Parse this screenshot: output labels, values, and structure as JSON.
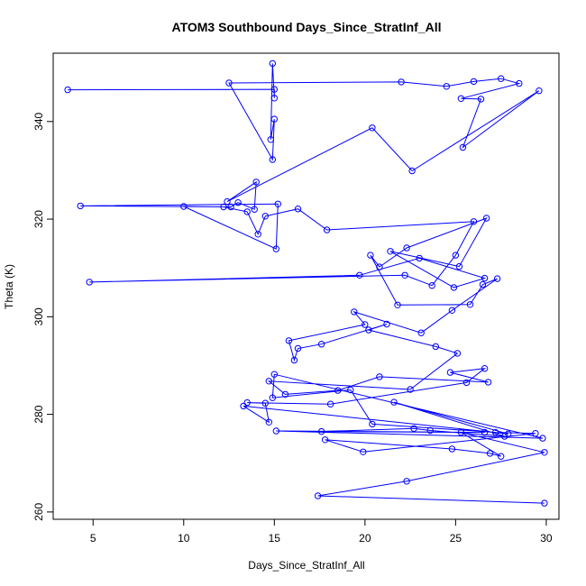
{
  "chart_data": {
    "type": "scatter",
    "title": "ATOM3 Southbound Days_Since_StratInf_All",
    "xlabel": "Days_Since_StratInf_All",
    "ylabel": "Theta (K)",
    "xlim": [
      2.8,
      30.7
    ],
    "ylim": [
      258.5,
      354.0
    ],
    "xticks": [
      5,
      10,
      15,
      20,
      25,
      30
    ],
    "yticks": [
      260,
      280,
      300,
      320,
      340
    ],
    "grid": false,
    "legend": "none",
    "marker": "open-circle",
    "connected": true,
    "series": [
      {
        "color": "#0000ff",
        "x": [
          3.6,
          15.0,
          15.0,
          14.9,
          14.8,
          15.0,
          14.9,
          12.5,
          22.0,
          24.5,
          26.0,
          27.5,
          28.5,
          25.3,
          26.4,
          25.4,
          29.6,
          22.6,
          20.4,
          12.4,
          14.0,
          13.9,
          13.0,
          12.6,
          4.3,
          15.2,
          15.1,
          10.0,
          12.2,
          13.5,
          14.1,
          14.5,
          16.3,
          17.9,
          26.0,
          25.0,
          23.7,
          22.2,
          4.8,
          19.7,
          23.0,
          26.6,
          24.9,
          21.4,
          25.2,
          26.7,
          22.3,
          20.8,
          20.3,
          21.8,
          25.8,
          26.5,
          27.3,
          24.8,
          23.1,
          19.4,
          20.0,
          15.8,
          16.1,
          16.3,
          17.6,
          21.2,
          20.2,
          23.9,
          25.1,
          22.5,
          14.7,
          15.6,
          18.5,
          20.8,
          26.8,
          24.7,
          26.6,
          25.6,
          18.1,
          13.5,
          14.5,
          14.7,
          13.3,
          27.9,
          21.6,
          27.7,
          23.6,
          22.7,
          17.6,
          26.6,
          15.1,
          29.8,
          15.0,
          14.9,
          19.2,
          20.4,
          27.2,
          29.4,
          19.9,
          17.8,
          24.8,
          26.9,
          27.5,
          25.3,
          29.9,
          22.3,
          17.4,
          29.9
        ],
        "y": [
          346.5,
          346.6,
          344.8,
          351.9,
          336.3,
          340.5,
          332.2,
          347.9,
          348.1,
          347.2,
          348.2,
          348.8,
          347.8,
          344.7,
          344.6,
          334.7,
          346.3,
          329.9,
          338.7,
          323.6,
          327.6,
          322.0,
          323.4,
          322.5,
          322.7,
          323.1,
          313.9,
          322.6,
          322.5,
          321.5,
          316.9,
          320.6,
          322.1,
          317.8,
          319.5,
          312.6,
          306.4,
          308.5,
          307.1,
          308.5,
          312.0,
          307.9,
          306.0,
          313.4,
          310.3,
          320.2,
          314.1,
          310.2,
          312.6,
          302.4,
          302.5,
          306.6,
          307.8,
          301.3,
          296.7,
          301.0,
          298.4,
          295.1,
          291.1,
          293.5,
          294.4,
          298.5,
          297.3,
          293.9,
          292.5,
          285.1,
          286.8,
          284.1,
          284.9,
          287.7,
          286.6,
          288.6,
          289.4,
          286.5,
          282.1,
          282.4,
          282.3,
          278.4,
          281.7,
          276.0,
          282.5,
          275.5,
          276.7,
          277.1,
          276.5,
          276.3,
          276.6,
          275.1,
          288.2,
          283.4,
          285.0,
          278.0,
          276.3,
          276.1,
          272.3,
          274.8,
          272.9,
          272.0,
          271.4,
          276.3,
          272.2,
          266.3,
          263.3,
          261.8
        ]
      }
    ]
  }
}
